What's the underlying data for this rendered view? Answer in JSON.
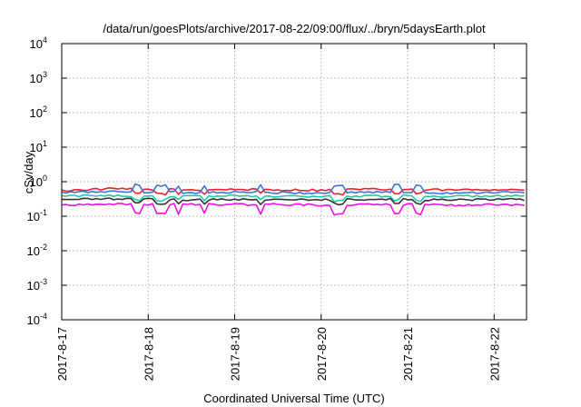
{
  "chart_data": {
    "type": "line",
    "title": "/data/run/goesPlots/archive/2017-08-22/09:00/flux/../bryn/5daysEarth.plot",
    "xlabel": "Coordinated Universal Time (UTC)",
    "ylabel": "cSv/day",
    "yscale": "log",
    "ylim": [
      0.0001,
      10000
    ],
    "y_ticks": [
      {
        "base": "10",
        "exp": "-4"
      },
      {
        "base": "10",
        "exp": "-3"
      },
      {
        "base": "10",
        "exp": "-2"
      },
      {
        "base": "10",
        "exp": "-1"
      },
      {
        "base": "10",
        "exp": "0"
      },
      {
        "base": "10",
        "exp": "1"
      },
      {
        "base": "10",
        "exp": "2"
      },
      {
        "base": "10",
        "exp": "3"
      },
      {
        "base": "10",
        "exp": "4"
      }
    ],
    "xlim": [
      "2017-08-17T00:00",
      "2017-08-22T09:00"
    ],
    "x_ticks": [
      "2017-8-17",
      "2017-8-18",
      "2017-8-19",
      "2017-8-20",
      "2017-8-21",
      "2017-8-22"
    ],
    "grid": true,
    "series": [
      {
        "color": "#e6232e",
        "x": [
          "2017-08-17T00:00",
          "2017-08-17T12:00",
          "2017-08-18T00:00",
          "2017-08-18T12:00",
          "2017-08-19T00:00",
          "2017-08-19T12:00",
          "2017-08-20T00:00",
          "2017-08-20T12:00",
          "2017-08-21T00:00",
          "2017-08-21T12:00",
          "2017-08-22T00:00",
          "2017-08-22T09:00"
        ],
        "values": [
          0.55,
          0.62,
          0.6,
          0.58,
          0.6,
          0.58,
          0.57,
          0.6,
          0.6,
          0.57,
          0.6,
          0.58
        ]
      },
      {
        "color": "#3a74e0",
        "x": [
          "2017-08-17T00:00",
          "2017-08-17T12:00",
          "2017-08-18T00:00",
          "2017-08-18T12:00",
          "2017-08-19T00:00",
          "2017-08-19T12:00",
          "2017-08-20T00:00",
          "2017-08-20T12:00",
          "2017-08-21T00:00",
          "2017-08-21T12:00",
          "2017-08-22T00:00",
          "2017-08-22T09:00"
        ],
        "values": [
          0.48,
          0.52,
          0.5,
          0.48,
          0.5,
          0.48,
          0.47,
          0.5,
          0.5,
          0.47,
          0.5,
          0.48
        ]
      },
      {
        "color": "#22c7a8",
        "x": [
          "2017-08-17T00:00",
          "2017-08-17T12:00",
          "2017-08-18T00:00",
          "2017-08-18T12:00",
          "2017-08-19T00:00",
          "2017-08-19T12:00",
          "2017-08-20T00:00",
          "2017-08-20T12:00",
          "2017-08-21T00:00",
          "2017-08-21T12:00",
          "2017-08-22T00:00",
          "2017-08-22T09:00"
        ],
        "values": [
          0.38,
          0.4,
          0.39,
          0.38,
          0.39,
          0.38,
          0.37,
          0.39,
          0.39,
          0.37,
          0.39,
          0.38
        ]
      },
      {
        "color": "#333333",
        "x": [
          "2017-08-17T00:00",
          "2017-08-17T12:00",
          "2017-08-18T00:00",
          "2017-08-18T12:00",
          "2017-08-19T00:00",
          "2017-08-19T12:00",
          "2017-08-20T00:00",
          "2017-08-20T12:00",
          "2017-08-21T00:00",
          "2017-08-21T12:00",
          "2017-08-22T00:00",
          "2017-08-22T09:00"
        ],
        "values": [
          0.3,
          0.32,
          0.31,
          0.3,
          0.31,
          0.3,
          0.3,
          0.31,
          0.31,
          0.3,
          0.31,
          0.3
        ]
      },
      {
        "color": "#ee11e0",
        "x": [
          "2017-08-17T00:00",
          "2017-08-17T12:00",
          "2017-08-18T00:00",
          "2017-08-18T12:00",
          "2017-08-19T00:00",
          "2017-08-19T12:00",
          "2017-08-20T00:00",
          "2017-08-20T12:00",
          "2017-08-21T00:00",
          "2017-08-21T12:00",
          "2017-08-22T00:00",
          "2017-08-22T09:00"
        ],
        "values": [
          0.21,
          0.23,
          0.22,
          0.22,
          0.22,
          0.22,
          0.21,
          0.22,
          0.22,
          0.21,
          0.22,
          0.21
        ]
      }
    ]
  }
}
